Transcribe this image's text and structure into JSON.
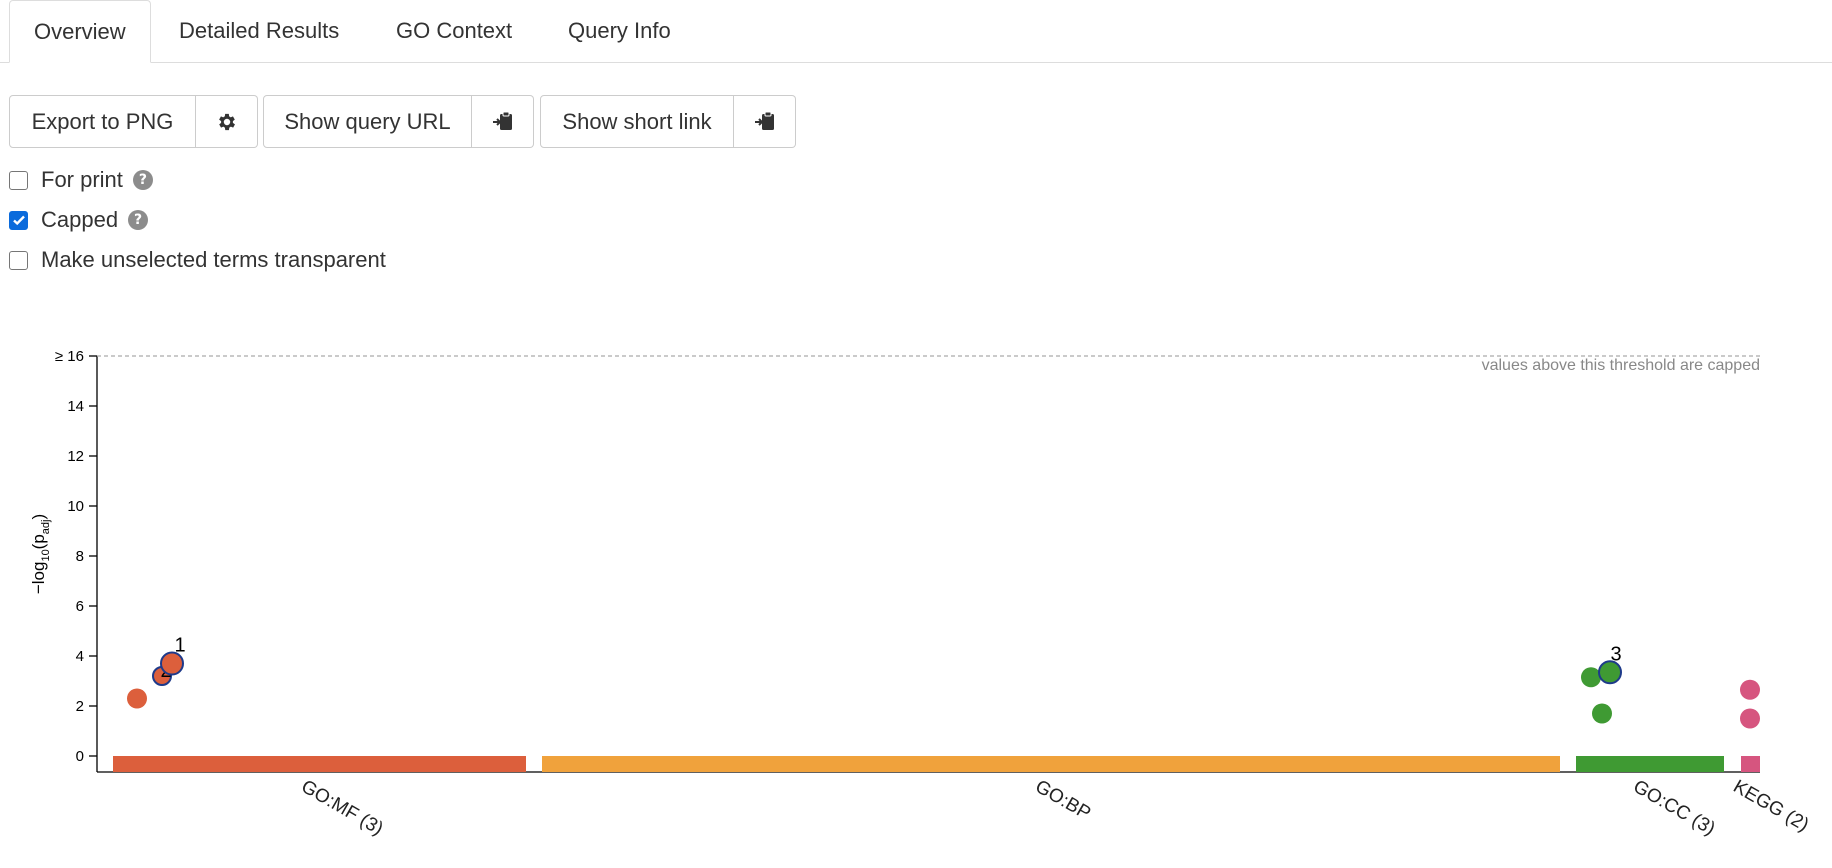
{
  "tabs": [
    {
      "label": "Overview",
      "active": true
    },
    {
      "label": "Detailed Results",
      "active": false
    },
    {
      "label": "GO Context",
      "active": false
    },
    {
      "label": "Query Info",
      "active": false
    }
  ],
  "toolbar": {
    "export_label": "Export to PNG",
    "settings_icon": "gear-icon",
    "query_url_label": "Show query URL",
    "short_link_label": "Show short link",
    "copy_icon": "clipboard-copy-icon"
  },
  "options": {
    "for_print": {
      "label": "For print",
      "checked": false
    },
    "capped": {
      "label": "Capped",
      "checked": true
    },
    "transparent": {
      "label": "Make unselected terms transparent",
      "checked": false
    }
  },
  "colors": {
    "GO:MF": "#dc5f3c",
    "GO:BP": "#f0a23c",
    "GO:CC": "#3f9a33",
    "KEGG": "#d6557f",
    "highlight_stroke": "#1e3a8a"
  },
  "chart_data": {
    "type": "scatter",
    "ylabel": "−log₁₀(p_adj)",
    "ylabel_main": "−log",
    "ylabel_sub1": "10",
    "ylabel_mid": "(p",
    "ylabel_sub2": "adj",
    "ylabel_end": ")",
    "ylim": [
      0,
      16
    ],
    "yticks": [
      {
        "value": 0,
        "label": "0"
      },
      {
        "value": 2,
        "label": "2"
      },
      {
        "value": 4,
        "label": "4"
      },
      {
        "value": 6,
        "label": "6"
      },
      {
        "value": 8,
        "label": "8"
      },
      {
        "value": 10,
        "label": "10"
      },
      {
        "value": 12,
        "label": "12"
      },
      {
        "value": 14,
        "label": "14"
      },
      {
        "value": 16,
        "label": "≥ 16"
      }
    ],
    "cap_note": "values above this threshold are capped",
    "categories": [
      {
        "name": "GO:MF",
        "label": "GO:MF (3)"
      },
      {
        "name": "GO:BP",
        "label": "GO:BP"
      },
      {
        "name": "GO:CC",
        "label": "GO:CC (3)"
      },
      {
        "name": "KEGG",
        "label": "KEGG (2)"
      }
    ],
    "points": [
      {
        "source": "GO:MF",
        "y": 2.3,
        "highlight": false,
        "label": ""
      },
      {
        "source": "GO:MF",
        "y": 3.2,
        "highlight": true,
        "label": "2"
      },
      {
        "source": "GO:MF",
        "y": 3.7,
        "highlight": true,
        "label": "1"
      },
      {
        "source": "GO:CC",
        "y": 3.15,
        "highlight": false,
        "label": ""
      },
      {
        "source": "GO:CC",
        "y": 1.7,
        "highlight": false,
        "label": ""
      },
      {
        "source": "GO:CC",
        "y": 3.35,
        "highlight": true,
        "label": "3"
      },
      {
        "source": "KEGG",
        "y": 2.65,
        "highlight": false,
        "label": ""
      },
      {
        "source": "KEGG",
        "y": 1.5,
        "highlight": false,
        "label": ""
      }
    ]
  }
}
